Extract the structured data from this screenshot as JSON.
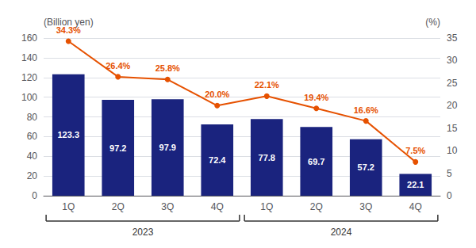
{
  "chart_data": {
    "type": "bar",
    "categories": [
      "1Q",
      "2Q",
      "3Q",
      "4Q",
      "1Q",
      "2Q",
      "3Q",
      "4Q"
    ],
    "series": [
      {
        "type": "bar",
        "color": "#1a237e",
        "values": [
          123.3,
          97.2,
          97.9,
          72.4,
          77.8,
          69.7,
          57.2,
          22.1
        ],
        "data_labels": true
      },
      {
        "type": "line",
        "axis": "y2",
        "color": "#e65100",
        "marker": "circle",
        "values": [
          34.3,
          26.4,
          25.8,
          20.0,
          22.1,
          19.4,
          16.6,
          7.5
        ],
        "value_labels": [
          "34.3%",
          "26.4%",
          "25.8%",
          "20.0%",
          "22.1%",
          "19.4%",
          "16.6%",
          "7.5%"
        ],
        "data_labels": true
      }
    ],
    "ylabel": "(Billion yen)",
    "y2label": "(%)",
    "ylim": [
      0,
      160
    ],
    "yticks": [
      0,
      20,
      40,
      60,
      80,
      100,
      120,
      140,
      160
    ],
    "y2lim": [
      0.0,
      35.0
    ],
    "y2ticks": [
      0.0,
      5.0,
      10.0,
      15.0,
      20.0,
      25.0,
      30.0,
      35.0
    ],
    "grid": true,
    "groups": [
      {
        "label": "2023",
        "span": [
          0,
          3
        ]
      },
      {
        "label": "2024",
        "span": [
          4,
          7
        ]
      }
    ]
  }
}
